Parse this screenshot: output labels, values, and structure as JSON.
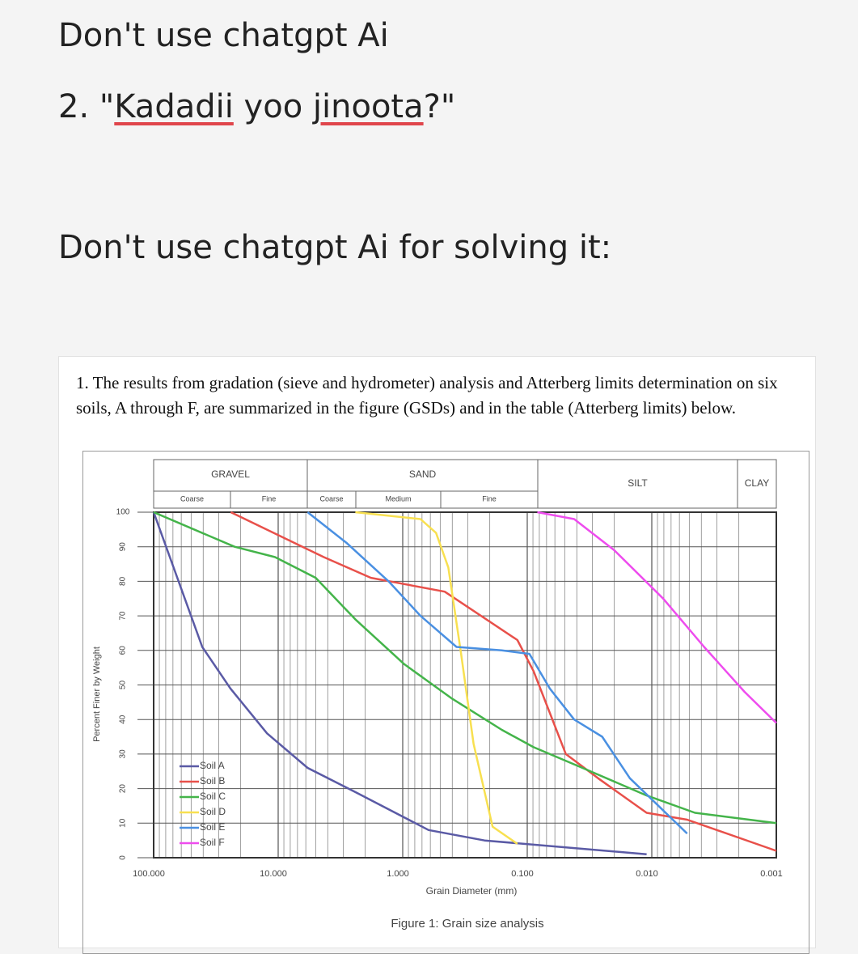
{
  "post": {
    "line1": "Don't use chatgpt Ai",
    "line2": [
      "2. \"",
      "Kadadii",
      " yoo ",
      "jinoota",
      "?\""
    ],
    "line3": "Don't use chatgpt Ai for solving it:"
  },
  "problem": "1. The results from gradation (sieve and hydrometer) analysis and Atterberg limits determination on six soils, A through F, are summarized in the figure (GSDs) and in the table (Atterberg limits) below.",
  "chart_data": {
    "type": "line",
    "x_log": true,
    "grid": true,
    "zones": [
      {
        "name": "GRAVEL",
        "parts": [
          "Coarse",
          "Fine"
        ]
      },
      {
        "name": "SAND",
        "parts": [
          "Coarse",
          "Medium",
          "Fine"
        ]
      },
      {
        "name": "SILT",
        "parts": []
      },
      {
        "name": "CLAY",
        "parts": []
      }
    ],
    "y_label": "Percent Finer by Weight",
    "x_label": "Grain Diameter (mm)",
    "caption": "Figure 1: Grain size analysis",
    "xlim": [
      100,
      0.001
    ],
    "xticks": [
      {
        "value": 100,
        "label": "100.000"
      },
      {
        "value": 10,
        "label": "10.000"
      },
      {
        "value": 1,
        "label": "1.000"
      },
      {
        "value": 0.1,
        "label": "0.100"
      },
      {
        "value": 0.01,
        "label": "0.010"
      },
      {
        "value": 0.001,
        "label": "0.001"
      }
    ],
    "ylim": [
      0,
      100
    ],
    "yticks": [
      0,
      10,
      20,
      30,
      40,
      50,
      60,
      70,
      80,
      90,
      100
    ],
    "series": [
      {
        "name": "Soil A",
        "color": "#5a5aa5",
        "x": [
          100,
          40.7,
          24.2,
          12.3,
          5.8,
          2.4,
          0.62,
          0.22,
          0.011
        ],
        "values": [
          100,
          61,
          49,
          36,
          26,
          19,
          8,
          5,
          1
        ]
      },
      {
        "name": "Soil B",
        "color": "#e8504a",
        "x": [
          24,
          4.3,
          1.8,
          0.46,
          0.12,
          0.089,
          0.049,
          0.027,
          0.011,
          0.0052,
          0.001
        ],
        "values": [
          100,
          87,
          81,
          77,
          63,
          54,
          30,
          23,
          13,
          11,
          2
        ]
      },
      {
        "name": "Soil C",
        "color": "#44b44a",
        "x": [
          100,
          22.4,
          10.6,
          5.0,
          2.4,
          0.97,
          0.4,
          0.16,
          0.089,
          0.036,
          0.011,
          0.0045,
          0.001
        ],
        "values": [
          100,
          90,
          87,
          81,
          69,
          56,
          46,
          37,
          32,
          26,
          18,
          13,
          10
        ]
      },
      {
        "name": "Soil D",
        "color": "#f8e050",
        "x": [
          2.4,
          0.72,
          0.54,
          0.43,
          0.34,
          0.27,
          0.19,
          0.12
        ],
        "values": [
          100,
          98,
          94,
          84,
          59,
          33,
          9,
          4
        ]
      },
      {
        "name": "Soil E",
        "color": "#4a90e2",
        "x": [
          5.8,
          2.8,
          1.3,
          0.72,
          0.37,
          0.16,
          0.096,
          0.066,
          0.042,
          0.025,
          0.015,
          0.0052
        ],
        "values": [
          100,
          91,
          80,
          70,
          61,
          60,
          59,
          49,
          40,
          35,
          23,
          7
        ]
      },
      {
        "name": "Soil F",
        "color": "#ee4cee",
        "x": [
          0.083,
          0.042,
          0.02,
          0.0081,
          0.0038,
          0.0018,
          0.001
        ],
        "values": [
          100,
          98,
          89,
          75,
          61,
          48,
          39
        ]
      }
    ]
  }
}
